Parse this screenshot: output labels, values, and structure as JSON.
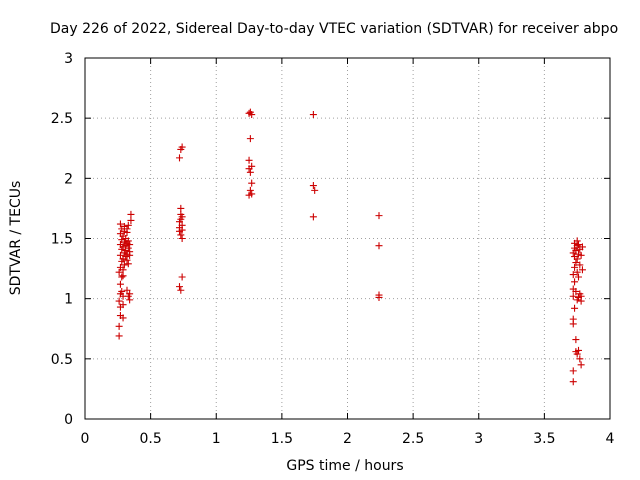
{
  "chart_data": {
    "type": "scatter",
    "title": "Day 226 of 2022, Sidereal Day-to-day VTEC variation (SDTVAR) for receiver abpo",
    "xlabel": "GPS time / hours",
    "ylabel": "SDTVAR / TECUs",
    "xlim": [
      0,
      4
    ],
    "ylim": [
      0,
      3
    ],
    "xticks": [
      0,
      0.5,
      1,
      1.5,
      2,
      2.5,
      3,
      3.5,
      4
    ],
    "xtick_labels": [
      "0",
      "0.5",
      "1",
      "1.5",
      "2",
      "2.5",
      "3",
      "3.5",
      "4"
    ],
    "yticks": [
      0,
      0.5,
      1,
      1.5,
      2,
      2.5,
      3
    ],
    "ytick_labels": [
      "0",
      "0.5",
      "1",
      "1.5",
      "2",
      "2.5",
      "3"
    ],
    "grid": true,
    "marker": "+",
    "marker_color": "#cc0000",
    "series": [
      {
        "name": "SDTVAR",
        "points": [
          [
            0.26,
            0.69
          ],
          [
            0.26,
            0.77
          ],
          [
            0.27,
            0.86
          ],
          [
            0.27,
            0.93
          ],
          [
            0.26,
            0.98
          ],
          [
            0.27,
            1.04
          ],
          [
            0.28,
            1.06
          ],
          [
            0.27,
            1.12
          ],
          [
            0.28,
            1.18
          ],
          [
            0.26,
            1.22
          ],
          [
            0.27,
            1.26
          ],
          [
            0.28,
            1.31
          ],
          [
            0.27,
            1.36
          ],
          [
            0.28,
            1.41
          ],
          [
            0.27,
            1.45
          ],
          [
            0.28,
            1.49
          ],
          [
            0.27,
            1.54
          ],
          [
            0.28,
            1.58
          ],
          [
            0.27,
            1.62
          ],
          [
            0.29,
            0.84
          ],
          [
            0.29,
            0.95
          ],
          [
            0.29,
            1.02
          ],
          [
            0.29,
            1.19
          ],
          [
            0.29,
            1.24
          ],
          [
            0.3,
            1.28
          ],
          [
            0.29,
            1.33
          ],
          [
            0.3,
            1.38
          ],
          [
            0.29,
            1.43
          ],
          [
            0.3,
            1.47
          ],
          [
            0.29,
            1.52
          ],
          [
            0.3,
            1.56
          ],
          [
            0.3,
            1.6
          ],
          [
            0.31,
            1.35
          ],
          [
            0.31,
            1.4
          ],
          [
            0.31,
            1.44
          ],
          [
            0.31,
            1.5
          ],
          [
            0.32,
            1.07
          ],
          [
            0.32,
            1.32
          ],
          [
            0.32,
            1.37
          ],
          [
            0.32,
            1.46
          ],
          [
            0.32,
            1.55
          ],
          [
            0.32,
            1.58
          ],
          [
            0.33,
            1.02
          ],
          [
            0.33,
            1.29
          ],
          [
            0.33,
            1.42
          ],
          [
            0.33,
            1.48
          ],
          [
            0.33,
            1.61
          ],
          [
            0.34,
            0.99
          ],
          [
            0.34,
            1.04
          ],
          [
            0.34,
            1.36
          ],
          [
            0.34,
            1.39
          ],
          [
            0.34,
            1.45
          ],
          [
            0.35,
            1.65
          ],
          [
            0.35,
            1.7
          ],
          [
            0.72,
            2.17
          ],
          [
            0.73,
            2.24
          ],
          [
            0.74,
            2.26
          ],
          [
            0.73,
            1.75
          ],
          [
            0.73,
            1.7
          ],
          [
            0.73,
            1.66
          ],
          [
            0.74,
            1.68
          ],
          [
            0.72,
            1.64
          ],
          [
            0.72,
            1.59
          ],
          [
            0.72,
            1.56
          ],
          [
            0.74,
            1.57
          ],
          [
            0.73,
            1.53
          ],
          [
            0.74,
            1.61
          ],
          [
            0.74,
            1.5
          ],
          [
            0.72,
            1.1
          ],
          [
            0.73,
            1.07
          ],
          [
            0.74,
            1.18
          ],
          [
            1.25,
            2.54
          ],
          [
            1.26,
            2.55
          ],
          [
            1.27,
            2.53
          ],
          [
            1.26,
            2.33
          ],
          [
            1.25,
            2.15
          ],
          [
            1.27,
            2.1
          ],
          [
            1.25,
            2.08
          ],
          [
            1.26,
            2.05
          ],
          [
            1.27,
            1.96
          ],
          [
            1.26,
            1.9
          ],
          [
            1.25,
            1.86
          ],
          [
            1.27,
            1.87
          ],
          [
            1.74,
            2.53
          ],
          [
            1.74,
            1.94
          ],
          [
            1.75,
            1.9
          ],
          [
            1.74,
            1.68
          ],
          [
            2.24,
            1.69
          ],
          [
            2.24,
            1.44
          ],
          [
            2.24,
            1.03
          ],
          [
            2.24,
            1.01
          ],
          [
            3.72,
            0.31
          ],
          [
            3.72,
            0.4
          ],
          [
            3.72,
            0.79
          ],
          [
            3.72,
            0.83
          ],
          [
            3.72,
            1.02
          ],
          [
            3.72,
            1.08
          ],
          [
            3.72,
            1.2
          ],
          [
            3.72,
            1.38
          ],
          [
            3.73,
            0.92
          ],
          [
            3.73,
            1.14
          ],
          [
            3.73,
            1.26
          ],
          [
            3.73,
            1.35
          ],
          [
            3.73,
            1.42
          ],
          [
            3.73,
            1.46
          ],
          [
            3.74,
            0.56
          ],
          [
            3.74,
            0.66
          ],
          [
            3.74,
            1.06
          ],
          [
            3.74,
            1.3
          ],
          [
            3.74,
            1.4
          ],
          [
            3.75,
            0.54
          ],
          [
            3.75,
            0.99
          ],
          [
            3.75,
            1.22
          ],
          [
            3.75,
            1.33
          ],
          [
            3.75,
            1.44
          ],
          [
            3.75,
            1.48
          ],
          [
            3.76,
            0.57
          ],
          [
            3.76,
            1.01
          ],
          [
            3.76,
            1.18
          ],
          [
            3.76,
            1.37
          ],
          [
            3.76,
            1.45
          ],
          [
            3.77,
            0.5
          ],
          [
            3.77,
            1.04
          ],
          [
            3.77,
            1.28
          ],
          [
            3.77,
            1.41
          ],
          [
            3.78,
            0.45
          ],
          [
            3.78,
            0.98
          ],
          [
            3.78,
            1.02
          ],
          [
            3.78,
            1.36
          ],
          [
            3.79,
            1.24
          ],
          [
            3.79,
            1.43
          ]
        ]
      }
    ]
  }
}
